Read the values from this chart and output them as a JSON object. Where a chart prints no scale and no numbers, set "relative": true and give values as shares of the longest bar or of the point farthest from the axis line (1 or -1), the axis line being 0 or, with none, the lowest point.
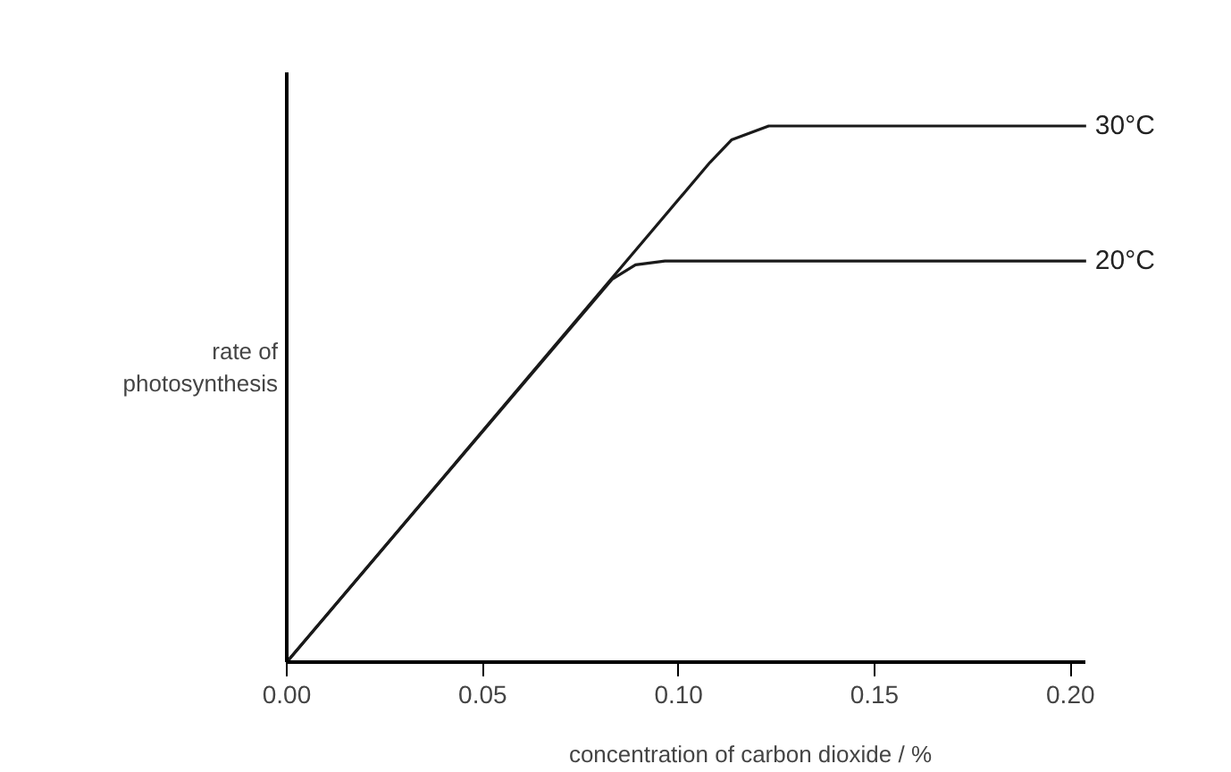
{
  "chart_data": {
    "type": "line",
    "relative": true,
    "xlabel": "concentration of carbon dioxide / %",
    "ylabel": "rate of\nphotosynthesis",
    "xlim": [
      0,
      0.204
    ],
    "xticks": [
      {
        "value": 0,
        "label": "0.00"
      },
      {
        "value": 0.05,
        "label": "0.05"
      },
      {
        "value": 0.1,
        "label": "0.10"
      },
      {
        "value": 0.15,
        "label": "0.15"
      },
      {
        "value": 0.2,
        "label": "0.20"
      }
    ],
    "grid": false,
    "series": [
      {
        "name": "30°C",
        "color": "#1a1a1a",
        "x": [
          0,
          0.108,
          0.1135,
          0.123,
          0.204
        ],
        "values": [
          0,
          0.932,
          0.974,
          1,
          1
        ]
      },
      {
        "name": "20°C",
        "color": "#1a1a1a",
        "x": [
          0,
          0.083,
          0.089,
          0.0965,
          0.204
        ],
        "values": [
          0,
          0.714,
          0.741,
          0.748,
          0.748
        ]
      }
    ]
  }
}
